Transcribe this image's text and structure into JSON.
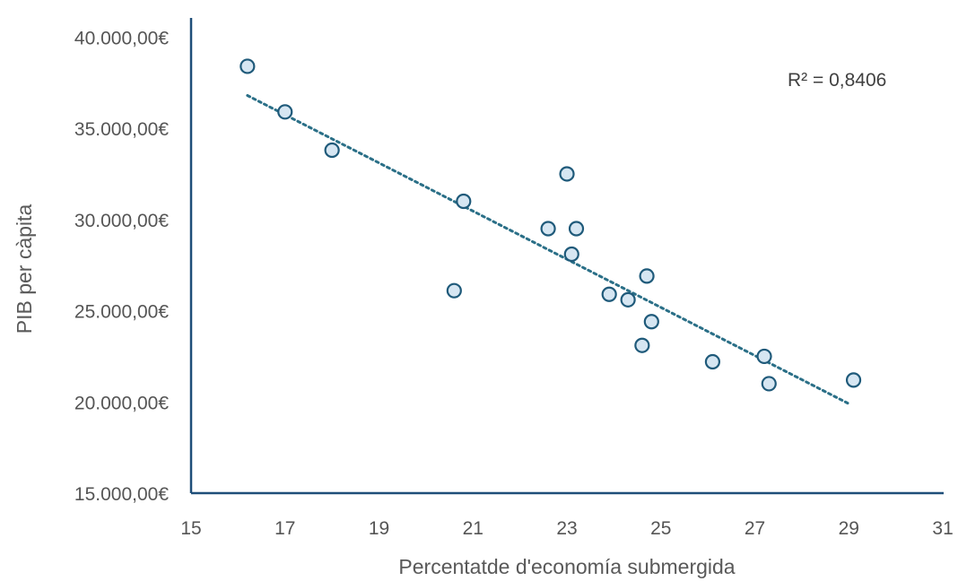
{
  "chart_data": {
    "type": "scatter",
    "title": "",
    "xlabel": "Percentatde d'economía submergida",
    "ylabel": "PIB per càpita",
    "xlim": [
      15,
      31
    ],
    "ylim": [
      15000,
      40000
    ],
    "x_ticks": [
      15,
      17,
      19,
      21,
      23,
      25,
      27,
      29,
      31
    ],
    "x_tick_labels": [
      "15",
      "17",
      "19",
      "21",
      "23",
      "25",
      "27",
      "29",
      "31"
    ],
    "y_ticks": [
      15000,
      20000,
      25000,
      30000,
      35000,
      40000
    ],
    "y_tick_labels": [
      "15.000,00€",
      "20.000,00€",
      "25.000,00€",
      "30.000,00€",
      "35.000,00€",
      "40.000,00€"
    ],
    "grid": false,
    "legend": "none",
    "series": [
      {
        "x": [
          16.2,
          17.0,
          18.0,
          20.6,
          20.8,
          22.6,
          23.0,
          23.1,
          23.2,
          23.9,
          24.3,
          24.6,
          24.7,
          24.8,
          26.1,
          27.2,
          27.3,
          29.1
        ],
        "y": [
          38400,
          35900,
          33800,
          26100,
          31000,
          29500,
          32500,
          28100,
          29500,
          25900,
          25600,
          23100,
          26900,
          24400,
          22200,
          22500,
          21000,
          21200
        ]
      }
    ],
    "trendline": {
      "type": "linear",
      "x_range": [
        16.2,
        29.0
      ],
      "y_range": [
        36800,
        19900
      ],
      "label": "R² = 0,8406"
    },
    "colors": {
      "marker_fill": "#d6e6f2",
      "marker_stroke": "#1f5a7a",
      "trendline": "#2a6f87",
      "axis": "#1f4e79",
      "text": "#555555"
    }
  }
}
